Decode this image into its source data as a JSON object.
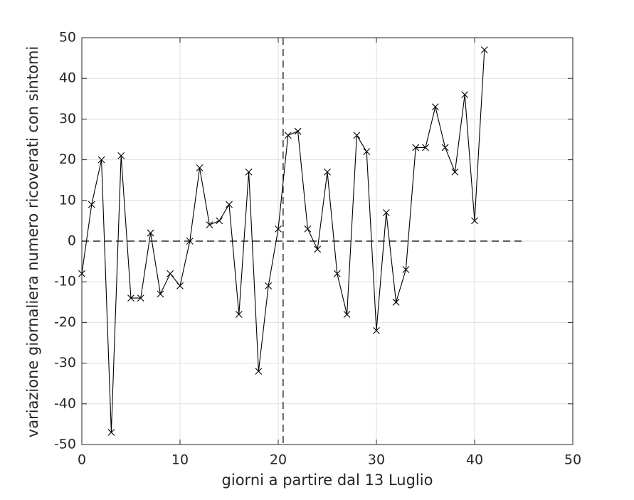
{
  "chart_data": {
    "type": "line",
    "xlabel": "giorni a partire dal 13 Luglio",
    "ylabel": "variazione giornaliera numero ricoverati con sintomi",
    "x": [
      0,
      1,
      2,
      3,
      4,
      5,
      6,
      7,
      8,
      9,
      10,
      11,
      12,
      13,
      14,
      15,
      16,
      17,
      18,
      19,
      20,
      21,
      22,
      23,
      24,
      25,
      26,
      27,
      28,
      29,
      30,
      31,
      32,
      33,
      34,
      35,
      36,
      37,
      38,
      39,
      40,
      41
    ],
    "series": [
      {
        "color": "#000000",
        "values": [
          -8,
          9,
          20,
          -47,
          21,
          -14,
          -14,
          2,
          -13,
          -8,
          -11,
          0,
          18,
          4,
          5,
          9,
          -18,
          17,
          -32,
          -11,
          3,
          26,
          27,
          3,
          -2,
          17,
          -8,
          -18,
          26,
          22,
          -22,
          7,
          -15,
          -7,
          23,
          23,
          33,
          23,
          17,
          36,
          5,
          47
        ]
      }
    ],
    "reference_lines": {
      "hline_y": 0,
      "hline_x": [
        0,
        45
      ],
      "vline_x": 20.5
    },
    "xlim": [
      0,
      50
    ],
    "xticks": [
      0,
      10,
      20,
      30,
      40,
      50
    ],
    "ylim": [
      -50,
      50
    ],
    "yticks": [
      -50,
      -40,
      -30,
      -20,
      -10,
      0,
      10,
      20,
      30,
      40,
      50
    ],
    "grid": true
  }
}
